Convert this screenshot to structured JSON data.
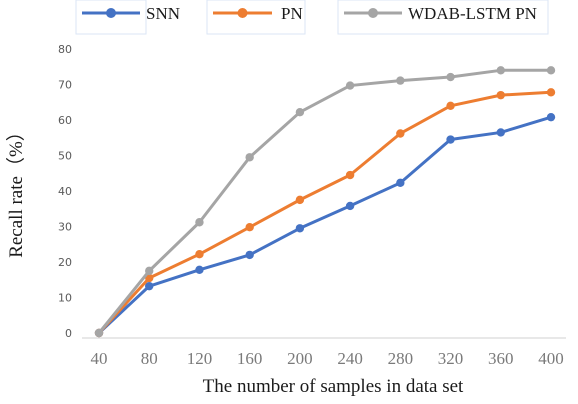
{
  "chart_data": {
    "type": "line",
    "title": "",
    "xlabel": "The number of samples in data set",
    "ylabel": "Recall rate（%）",
    "x": [
      40,
      80,
      120,
      160,
      200,
      240,
      280,
      320,
      360,
      400
    ],
    "ylim": [
      0,
      80
    ],
    "yticks": [
      0,
      10,
      20,
      30,
      40,
      50,
      60,
      70,
      80
    ],
    "grid": false,
    "legend_position": "top",
    "series": [
      {
        "name": "SNN",
        "color": "#4472c4",
        "values": [
          0,
          13.2,
          17.8,
          22.0,
          29.5,
          35.8,
          42.3,
          54.5,
          56.5,
          60.8
        ]
      },
      {
        "name": "PN",
        "color": "#ed7d31",
        "values": [
          0,
          15.5,
          22.2,
          29.8,
          37.5,
          44.5,
          56.2,
          64.0,
          67.0,
          67.8
        ]
      },
      {
        "name": "WDAB-LSTM PN",
        "color": "#a5a5a5",
        "values": [
          0,
          17.5,
          31.2,
          49.5,
          62.2,
          69.7,
          71.1,
          72.1,
          74.0,
          74.0
        ]
      }
    ]
  }
}
